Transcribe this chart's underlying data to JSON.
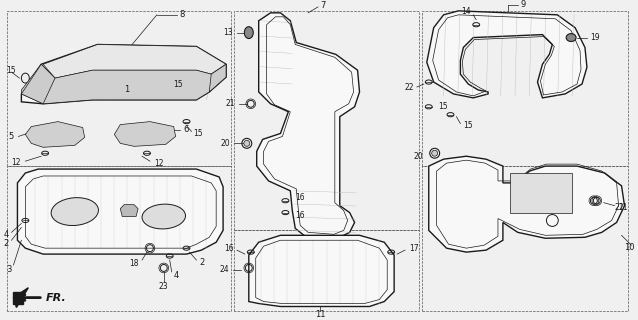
{
  "bg_color": "#f0f0f0",
  "line_color": "#1a1a1a",
  "fig_width": 6.38,
  "fig_height": 3.2,
  "dpi": 100,
  "label_fontsize": 6.0,
  "lw_main": 1.0,
  "lw_thin": 0.5,
  "lw_dash": 0.5,
  "gray_fill": "#d0d0d0",
  "white_fill": "#f8f8f8"
}
